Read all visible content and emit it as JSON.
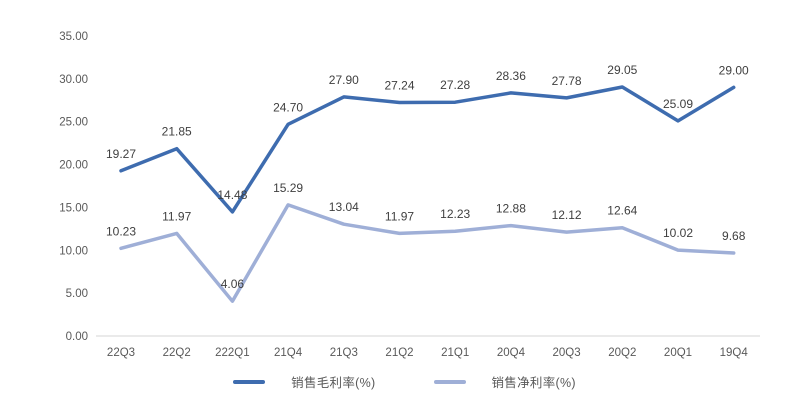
{
  "chart_data": {
    "type": "line",
    "title": "",
    "xlabel": "",
    "ylabel": "",
    "categories": [
      "22Q3",
      "22Q2",
      "222Q1",
      "21Q4",
      "21Q3",
      "21Q2",
      "21Q1",
      "20Q4",
      "20Q3",
      "20Q2",
      "20Q1",
      "19Q4"
    ],
    "series": [
      {
        "name": "销售毛利率(%)",
        "color": "#3E6CAF",
        "values": [
          19.27,
          21.85,
          14.48,
          24.7,
          27.9,
          27.24,
          27.28,
          28.36,
          27.78,
          29.05,
          25.09,
          29.0
        ],
        "labels": [
          "19.27",
          "21.85",
          "14.48",
          "24.70",
          "27.90",
          "27.24",
          "27.28",
          "28.36",
          "27.78",
          "29.05",
          "25.09",
          "29.00"
        ]
      },
      {
        "name": "销售净利率(%)",
        "color": "#9FAFD7",
        "values": [
          10.23,
          11.97,
          4.06,
          15.29,
          13.04,
          11.97,
          12.23,
          12.88,
          12.12,
          12.64,
          10.02,
          9.68
        ],
        "labels": [
          "10.23",
          "11.97",
          "4.06",
          "15.29",
          "13.04",
          "11.97",
          "12.23",
          "12.88",
          "12.12",
          "12.64",
          "10.02",
          "9.68"
        ]
      }
    ],
    "ylim": [
      0,
      35
    ],
    "ytick_step": 5,
    "ytick_labels": [
      "0.00",
      "5.00",
      "10.00",
      "15.00",
      "20.00",
      "25.00",
      "30.00",
      "35.00"
    ],
    "grid": false,
    "data_labels": true,
    "legend_position": "bottom",
    "axis_color": "#D6D6D6",
    "tick_label_color": "#595959",
    "data_label_color": "#3f3f3f"
  }
}
